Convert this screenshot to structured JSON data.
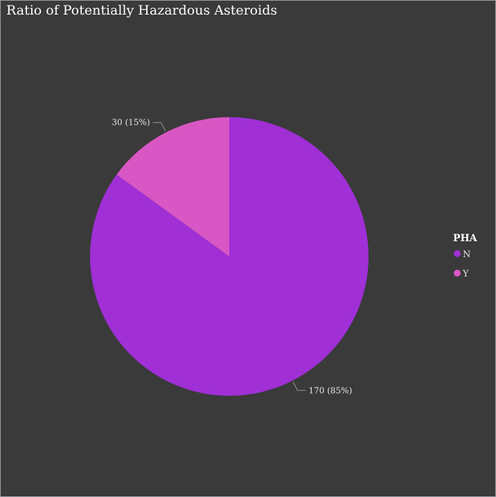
{
  "title": "Ratio of Potentially Hazardous Asteroids",
  "chart_data": {
    "type": "pie",
    "title": "Ratio of Potentially Hazardous Asteroids",
    "legend_title": "PHA",
    "legend_position": "right",
    "background": "#3a3a3a",
    "slices": [
      {
        "label": "N",
        "value": 170,
        "percent": 85,
        "color": "#a02fd6",
        "data_label": "170 (85%)"
      },
      {
        "label": "Y",
        "value": 30,
        "percent": 15,
        "color": "#d957c4",
        "data_label": "30 (15%)"
      }
    ]
  }
}
